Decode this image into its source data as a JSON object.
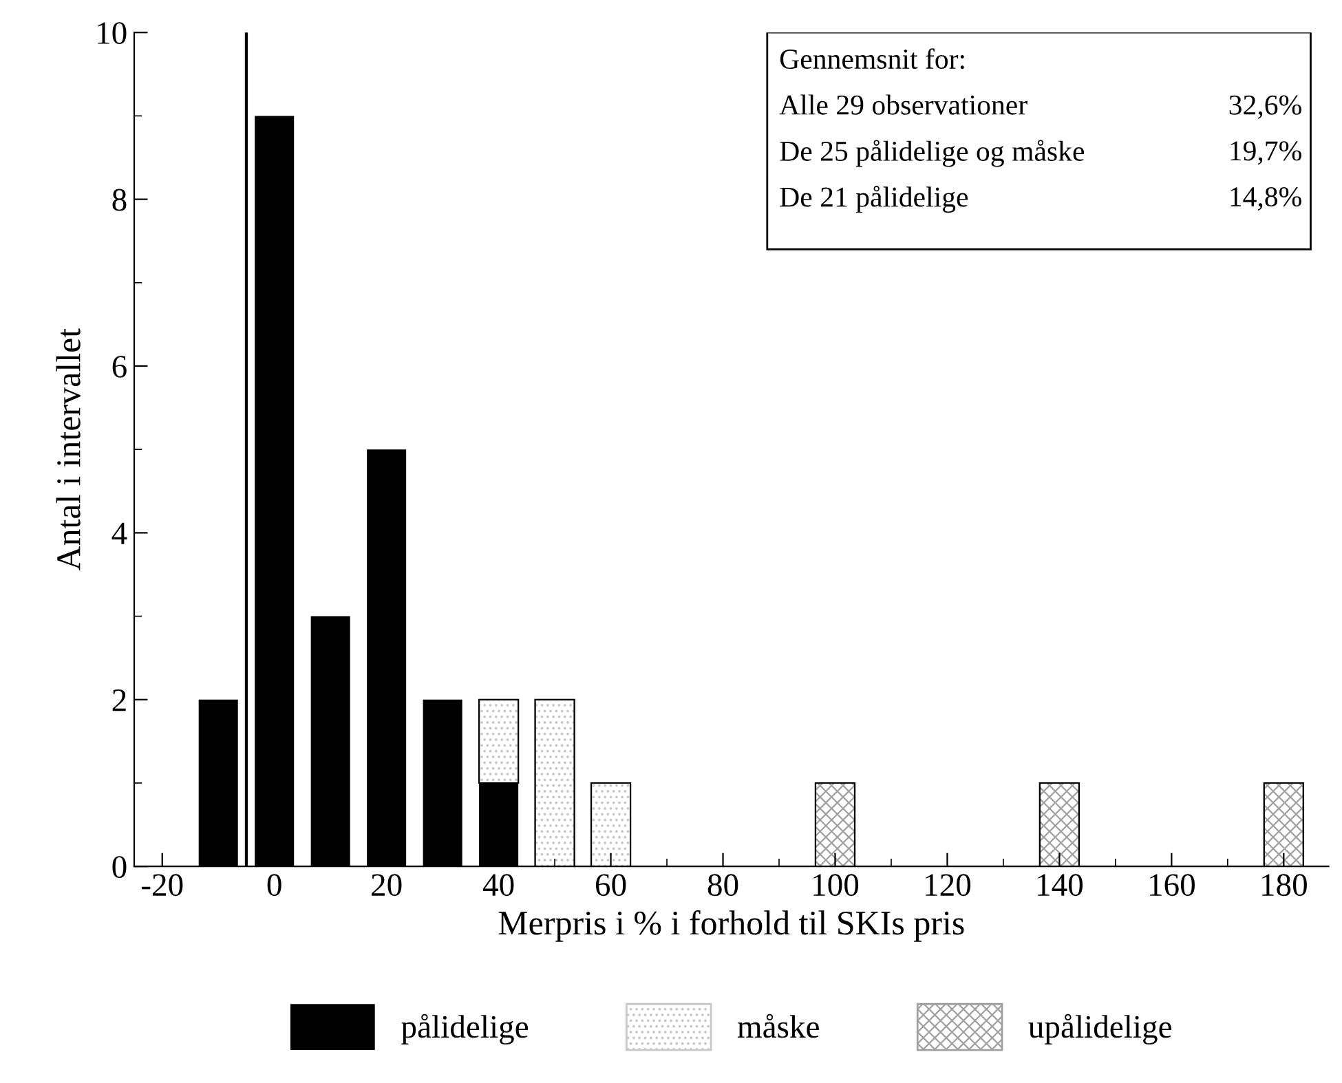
{
  "chart_data": {
    "type": "bar",
    "stacked": true,
    "xlabel": "Merpris i % i forhold til SKIs pris",
    "ylabel": "Antal i intervallet",
    "x": [
      -10,
      0,
      10,
      20,
      30,
      40,
      50,
      60,
      100,
      140,
      180
    ],
    "series": [
      {
        "name": "pålidelige",
        "color": "#000000",
        "values": [
          2,
          9,
          3,
          5,
          2,
          1,
          null,
          null,
          null,
          null,
          null
        ]
      },
      {
        "name": "måske",
        "color": "#c8c8c8",
        "values": [
          null,
          null,
          null,
          null,
          null,
          1,
          2,
          1,
          null,
          null,
          null
        ]
      },
      {
        "name": "upålidelige",
        "color": "#a0a0a0",
        "values": [
          null,
          null,
          null,
          null,
          null,
          null,
          null,
          null,
          1,
          1,
          1
        ]
      }
    ],
    "xlim": [
      -25,
      188
    ],
    "xticks": [
      -20,
      0,
      20,
      40,
      60,
      80,
      100,
      120,
      140,
      160,
      180
    ],
    "ylim": [
      0,
      10
    ],
    "yticks": [
      0,
      2,
      4,
      6,
      8,
      10
    ],
    "ref_lines": [
      {
        "axis": "x",
        "value": -5,
        "color": "#000000"
      }
    ],
    "annotations": [
      "Gennemsnit for:",
      "Alle 29 observationer",
      "32,6%",
      "De 25 pålidelige og måske",
      "19,7%",
      "De 21 pålidelige",
      "14,8%"
    ],
    "grid": false,
    "legend": "bottom"
  }
}
